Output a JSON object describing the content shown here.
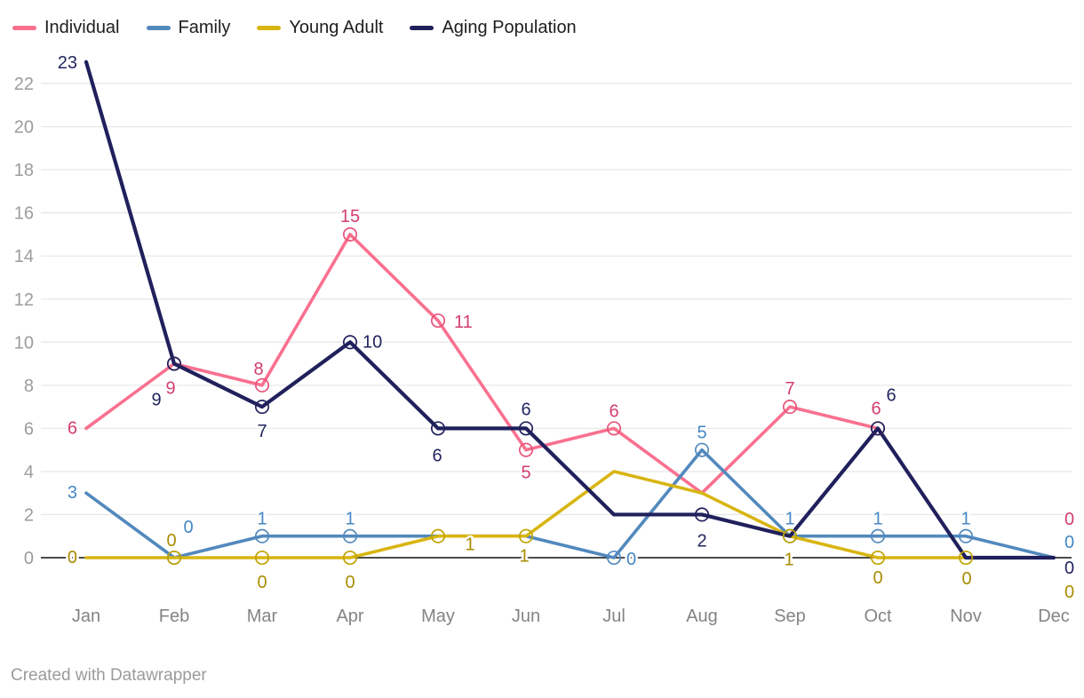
{
  "footer": {
    "credit": "Created with Datawrapper"
  },
  "colors": {
    "background": "#ffffff",
    "grid": "#e8e8e8",
    "zero_line": "#111111",
    "y_tick_text": "#9c9c9c",
    "x_tick_text": "#848484",
    "legend_text": "#1d1d1d",
    "footer_text": "#9b9b9b"
  },
  "chart_data": {
    "type": "line",
    "title": "",
    "xlabel": "",
    "ylabel": "",
    "legend_position": "top",
    "grid": true,
    "categories": [
      "Jan",
      "Feb",
      "Mar",
      "Apr",
      "May",
      "Jun",
      "Jul",
      "Aug",
      "Sep",
      "Oct",
      "Nov",
      "Dec"
    ],
    "y_axis": {
      "min": 0,
      "max": 23,
      "ticks": [
        0,
        2,
        4,
        6,
        8,
        10,
        12,
        14,
        16,
        18,
        20,
        22
      ]
    },
    "series": [
      {
        "name": "Individual",
        "color": "#f9708f",
        "label_color": "#d23d6d",
        "marker_color": "#e8547a",
        "stroke_width": 3.6,
        "values": [
          6,
          9,
          8,
          15,
          11,
          5,
          6,
          3,
          7,
          6,
          0,
          0
        ],
        "labels": [
          {
            "dx": -10,
            "dy": 6,
            "anchor": "end"
          },
          {
            "dx": -4,
            "dy": 34
          },
          {
            "dx": -4,
            "dy": -12
          },
          {
            "dx": 0,
            "dy": -14
          },
          {
            "dx": 18,
            "dy": 8,
            "anchor": "start"
          },
          {
            "dx": 0,
            "dy": 32
          },
          {
            "dx": 0,
            "dy": -13
          },
          null,
          {
            "dx": 0,
            "dy": -14
          },
          {
            "dx": -2,
            "dy": -16
          },
          null,
          {
            "dx": 12,
            "dy": -37,
            "anchor": "start"
          }
        ]
      },
      {
        "name": "Family",
        "color": "#5289bd",
        "label_color": "#4587c5",
        "marker_color": "#5289bd",
        "stroke_width": 3.6,
        "values": [
          3,
          0,
          1,
          1,
          1,
          1,
          0,
          5,
          1,
          1,
          1,
          0
        ],
        "labels": [
          {
            "dx": -10,
            "dy": 6,
            "anchor": "end"
          },
          {
            "dx": 16,
            "dy": -28
          },
          {
            "dx": 0,
            "dy": -13
          },
          {
            "dx": 0,
            "dy": -13
          },
          null,
          null,
          {
            "dx": 14,
            "dy": 8,
            "anchor": "start"
          },
          {
            "dx": 0,
            "dy": -13
          },
          {
            "dx": 0,
            "dy": -13
          },
          {
            "dx": 0,
            "dy": -13
          },
          {
            "dx": 0,
            "dy": -13
          },
          {
            "dx": 12,
            "dy": -11,
            "anchor": "start"
          }
        ]
      },
      {
        "name": "Young Adult",
        "color": "#d8b511",
        "label_color": "#a98c00",
        "marker_color": "#c0a300",
        "stroke_width": 3.6,
        "values": [
          0,
          0,
          0,
          0,
          1,
          1,
          4,
          3,
          1,
          0,
          0,
          0
        ],
        "labels": [
          {
            "dx": -10,
            "dy": 6,
            "anchor": "end"
          },
          {
            "dx": -3,
            "dy": -13
          },
          {
            "dx": 0,
            "dy": 34
          },
          {
            "dx": 0,
            "dy": 34
          },
          {
            "dx": 36,
            "dy": 16
          },
          {
            "dx": -2,
            "dy": 29
          },
          null,
          null,
          {
            "dx": -1,
            "dy": 33
          },
          {
            "dx": 0,
            "dy": 29
          },
          {
            "dx": 1,
            "dy": 30
          },
          {
            "dx": 12,
            "dy": 45,
            "anchor": "start"
          }
        ]
      },
      {
        "name": "Aging Population",
        "color": "#20205c",
        "label_color": "#21265f",
        "marker_color": "#20205c",
        "stroke_width": 4.2,
        "values": [
          23,
          9,
          7,
          10,
          6,
          6,
          2,
          2,
          1,
          6,
          0,
          0
        ],
        "labels": [
          {
            "dx": -10,
            "dy": 7,
            "anchor": "end"
          },
          {
            "dx": -20,
            "dy": 47
          },
          {
            "dx": 0,
            "dy": 34
          },
          {
            "dx": 14,
            "dy": 6,
            "anchor": "start"
          },
          {
            "dx": -1,
            "dy": 37
          },
          {
            "dx": 0,
            "dy": -15
          },
          null,
          {
            "dx": 0,
            "dy": 36
          },
          null,
          {
            "dx": 15,
            "dy": -31
          },
          null,
          {
            "dx": 12,
            "dy": 18,
            "anchor": "start"
          }
        ]
      }
    ]
  }
}
